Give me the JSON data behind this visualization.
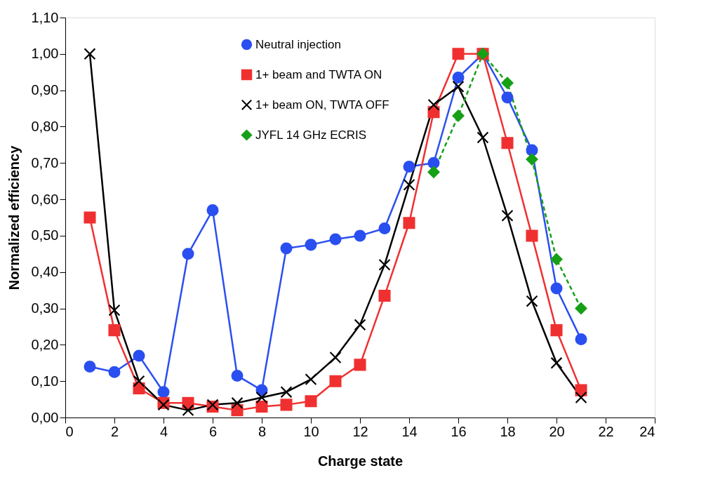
{
  "chart_data": {
    "type": "line",
    "xlabel": "Charge state",
    "ylabel": "Normalized efficiency",
    "x": [
      1,
      2,
      3,
      4,
      5,
      6,
      7,
      8,
      9,
      10,
      11,
      12,
      13,
      14,
      15,
      16,
      17,
      18,
      19,
      20,
      21
    ],
    "xlim": [
      0,
      24
    ],
    "xticks": [
      0,
      2,
      4,
      6,
      8,
      10,
      12,
      14,
      16,
      18,
      20,
      22,
      24
    ],
    "ylim": [
      0,
      1.1
    ],
    "yticks": [
      {
        "value": 0,
        "label": "0,00"
      },
      {
        "value": 0.1,
        "label": "0,10"
      },
      {
        "value": 0.2,
        "label": "0,20"
      },
      {
        "value": 0.3,
        "label": "0,30"
      },
      {
        "value": 0.4,
        "label": "0,40"
      },
      {
        "value": 0.5,
        "label": "0,50"
      },
      {
        "value": 0.6,
        "label": "0,60"
      },
      {
        "value": 0.7,
        "label": "0,70"
      },
      {
        "value": 0.8,
        "label": "0,80"
      },
      {
        "value": 0.9,
        "label": "0,90"
      },
      {
        "value": 1.0,
        "label": "1,00"
      },
      {
        "value": 1.1,
        "label": "1,10"
      }
    ],
    "grid": false,
    "legend": "top left",
    "series": [
      {
        "name": "Neutral injection",
        "color": "#2a4ff0",
        "marker": "circle",
        "line_style": "solid",
        "values": [
          0.14,
          0.125,
          0.17,
          0.07,
          0.45,
          0.57,
          0.115,
          0.075,
          0.465,
          0.475,
          0.49,
          0.5,
          0.52,
          0.69,
          0.7,
          0.935,
          1.0,
          0.88,
          0.735,
          0.355,
          0.215
        ]
      },
      {
        "name": "1+ beam and TWTA ON",
        "color": "#f03030",
        "marker": "square",
        "line_style": "solid",
        "values": [
          0.55,
          0.24,
          0.08,
          0.04,
          0.04,
          0.03,
          0.02,
          0.03,
          0.035,
          0.045,
          0.1,
          0.145,
          0.335,
          0.535,
          0.84,
          1.0,
          1.0,
          0.755,
          0.5,
          0.24,
          0.075
        ]
      },
      {
        "name": "1+ beam ON, TWTA OFF",
        "color": "#000000",
        "marker": "cross",
        "line_style": "solid",
        "values": [
          1.0,
          0.295,
          0.1,
          0.035,
          0.02,
          0.035,
          0.04,
          0.055,
          0.07,
          0.105,
          0.165,
          0.255,
          0.42,
          0.64,
          0.86,
          0.91,
          0.77,
          0.555,
          0.32,
          0.15,
          0.055
        ]
      },
      {
        "name": "JYFL 14 GHz ECRIS",
        "color": "#16a016",
        "marker": "diamond",
        "line_style": "dashed",
        "x": [
          15,
          16,
          17,
          18,
          19,
          20,
          21
        ],
        "values": [
          0.675,
          0.83,
          1.0,
          0.92,
          0.71,
          0.435,
          0.3
        ]
      }
    ]
  }
}
